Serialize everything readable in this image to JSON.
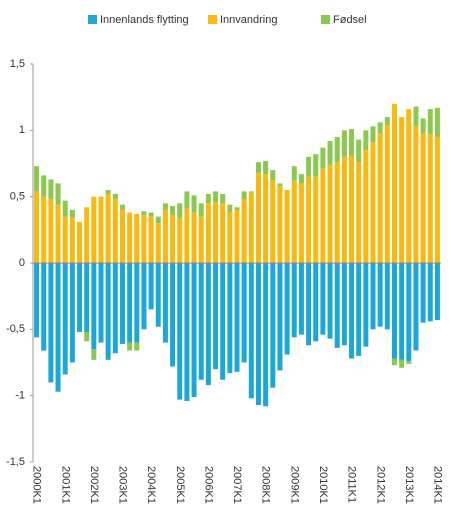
{
  "chart_data": {
    "type": "stacked-bar",
    "categories": [
      "2000K1",
      null,
      null,
      null,
      "2001K1",
      null,
      null,
      null,
      "2002K1",
      null,
      null,
      null,
      "2003K1",
      null,
      null,
      null,
      "2004K1",
      null,
      null,
      null,
      "2005K1",
      null,
      null,
      null,
      "2006K1",
      null,
      null,
      null,
      "2007K1",
      null,
      null,
      null,
      "2008K1",
      null,
      null,
      null,
      "2009K1",
      null,
      null,
      null,
      "2010K1",
      null,
      null,
      null,
      "2011K1",
      null,
      null,
      null,
      "2012K1",
      null,
      null,
      null,
      "2013K1",
      null,
      null,
      null,
      "2014K1"
    ],
    "series": [
      {
        "name": "Innenlands flytting",
        "color": "#1ba8d8",
        "values": [
          -0.56,
          -0.66,
          -0.9,
          -0.97,
          -0.84,
          -0.75,
          -0.52,
          -0.52,
          -0.65,
          -0.6,
          -0.73,
          -0.68,
          -0.61,
          -0.6,
          -0.6,
          -0.5,
          -0.35,
          -0.48,
          -0.6,
          -0.78,
          -1.03,
          -1.04,
          -1.01,
          -0.88,
          -0.92,
          -0.8,
          -0.88,
          -0.83,
          -0.82,
          -0.75,
          -1.02,
          -1.07,
          -1.08,
          -0.94,
          -0.81,
          -0.69,
          -0.56,
          -0.54,
          -0.62,
          -0.59,
          -0.54,
          -0.57,
          -0.64,
          -0.62,
          -0.72,
          -0.7,
          -0.63,
          -0.5,
          -0.48,
          -0.5,
          -0.72,
          -0.73,
          -0.74,
          -0.66,
          -0.45,
          -0.44,
          -0.43
        ]
      },
      {
        "name": "Innvandring",
        "color": "#f9b90f",
        "values": [
          0.54,
          0.5,
          0.48,
          0.44,
          0.35,
          0.34,
          0.31,
          0.42,
          0.5,
          0.5,
          0.52,
          0.48,
          0.4,
          0.38,
          0.37,
          0.36,
          0.35,
          0.3,
          0.4,
          0.36,
          0.34,
          0.41,
          0.38,
          0.35,
          0.45,
          0.46,
          0.45,
          0.38,
          0.4,
          0.48,
          0.53,
          0.68,
          0.67,
          0.62,
          0.58,
          0.55,
          0.62,
          0.6,
          0.65,
          0.65,
          0.71,
          0.74,
          0.76,
          0.8,
          0.81,
          0.76,
          0.85,
          0.91,
          0.98,
          1.04,
          1.2,
          1.1,
          1.16,
          1.03,
          0.98,
          0.97,
          0.95
        ]
      },
      {
        "name": "Fødsel",
        "color": "#8cc850",
        "values": [
          0.19,
          0.16,
          0.15,
          0.16,
          0.12,
          0.06,
          0,
          -0.07,
          -0.08,
          0,
          0.03,
          0.04,
          0.04,
          -0.06,
          -0.06,
          0.03,
          0.03,
          0.05,
          0.05,
          0.07,
          0.11,
          0.13,
          0.13,
          0.1,
          0.07,
          0.08,
          0.07,
          0.06,
          0.02,
          0.06,
          0.01,
          0.08,
          0.1,
          0.08,
          0.02,
          0,
          0.11,
          0.07,
          0.15,
          0.17,
          0.16,
          0.18,
          0.19,
          0.2,
          0.2,
          0.17,
          0.15,
          0.12,
          0.08,
          0.06,
          -0.05,
          -0.06,
          -0.02,
          0.15,
          0.11,
          0.19,
          0.22
        ]
      }
    ],
    "ylim": [
      -1.5,
      1.5
    ],
    "yticks": [
      {
        "value": -1.5,
        "label": "-1,5"
      },
      -1,
      {
        "value": -0.5,
        "label": "-0,5"
      },
      0,
      {
        "value": 0.5,
        "label": "0,5"
      },
      1,
      {
        "value": 1.5,
        "label": "1,5"
      }
    ]
  }
}
